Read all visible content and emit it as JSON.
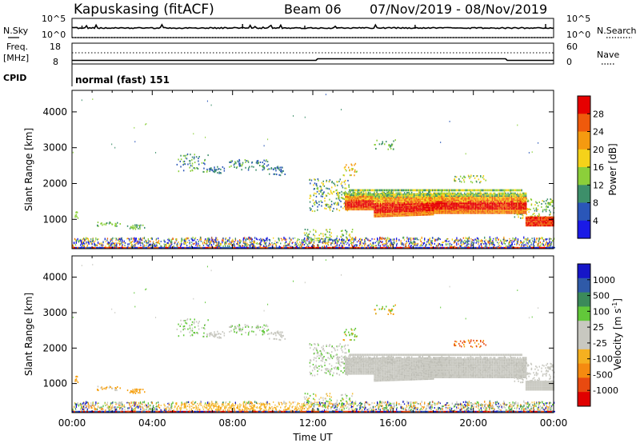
{
  "header": {
    "station": "Kapuskasing (fitACF)",
    "beam": "Beam 06",
    "dates": "07/Nov/2019 - 08/Nov/2019"
  },
  "left_labels": {
    "nsky": "N.Sky",
    "freq_top": "Freq.",
    "freq_unit": "[MHz]",
    "cpid": "CPID"
  },
  "right_labels": {
    "nsearch": "N.Search",
    "nave": "Nave"
  },
  "cpid_text": "normal (fast) 151",
  "chart_data": [
    {
      "type": "line",
      "panel": "noise",
      "series": [
        {
          "name": "N.Sky",
          "style": "solid"
        },
        {
          "name": "N.Search",
          "style": "dotted"
        }
      ],
      "left_ticks": [
        "10^5",
        "10^0"
      ],
      "right_ticks": [
        "10^5",
        "10^0"
      ]
    },
    {
      "type": "line",
      "panel": "freq-nave",
      "left_ticks": [
        "18",
        "8"
      ],
      "right_ticks": [
        "60",
        "0"
      ],
      "series": [
        {
          "name": "Freq",
          "style": "solid"
        },
        {
          "name": "Nave",
          "style": "dotted"
        }
      ]
    },
    {
      "type": "heatmap",
      "panel": "power",
      "ylabel": "Slant Range [km]",
      "yticks": [
        "4000",
        "3000",
        "2000",
        "1000"
      ],
      "colorbar_label": "Power [dB]",
      "colorbar_ticks": [
        "28",
        "24",
        "20",
        "16",
        "12",
        "8",
        "4"
      ],
      "colors": [
        "#1a1ae6",
        "#2a56b8",
        "#3d8f6a",
        "#8ccf3a",
        "#f5d21a",
        "#f59a10",
        "#ef5a0c",
        "#e60000"
      ]
    },
    {
      "type": "heatmap",
      "panel": "velocity",
      "ylabel": "Slant Range [km]",
      "yticks": [
        "4000",
        "3000",
        "2000",
        "1000"
      ],
      "colorbar_label": "Velocity [m s",
      "colorbar_sup": "-1",
      "colorbar_label_end": "]",
      "colorbar_ticks": [
        "1000",
        "500",
        "100",
        "25",
        "-25",
        "-100",
        "-500",
        "-1000"
      ],
      "colors": [
        "#1616c8",
        "#2f5aa8",
        "#3b8a5a",
        "#62c83a",
        "#c8c8c0",
        "#c8c8c0",
        "#f5b020",
        "#f58a10",
        "#e84a10",
        "#e00000"
      ],
      "xlabel": "Time UT",
      "xticks": [
        "00:00",
        "04:00",
        "08:00",
        "12:00",
        "16:00",
        "20:00",
        "00:00"
      ]
    }
  ]
}
